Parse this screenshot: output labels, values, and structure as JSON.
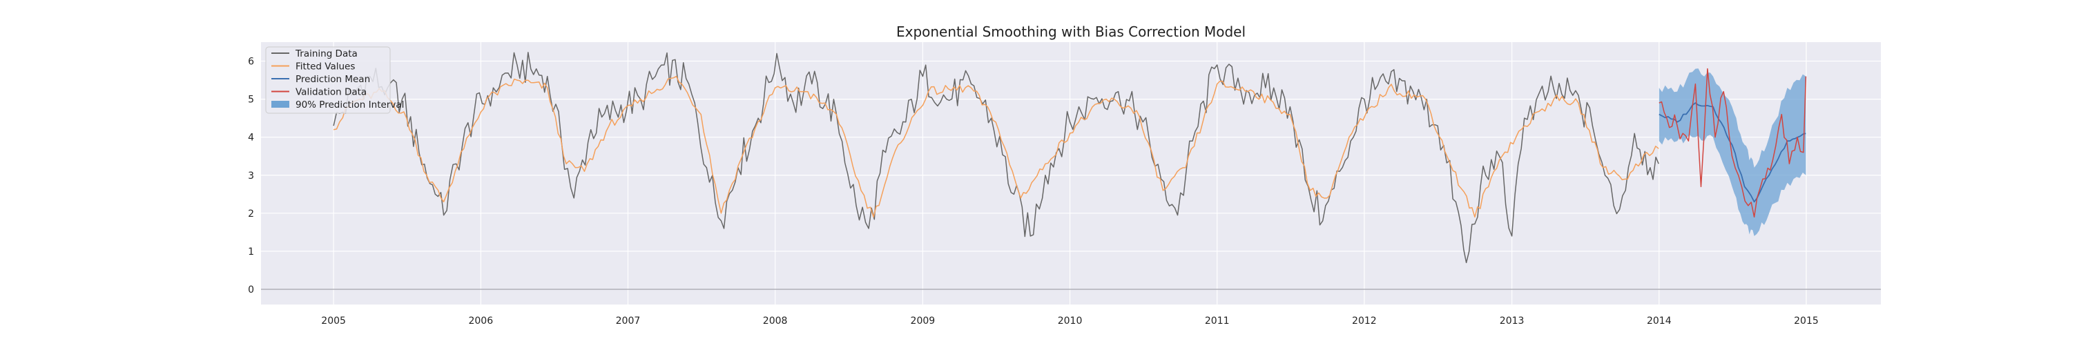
{
  "chart_data": {
    "type": "line",
    "title": "Exponential Smoothing with Bias Correction Model",
    "xlabel": "",
    "ylabel": "",
    "x_range": [
      "2004-07-05",
      "2015-07-05"
    ],
    "ylim": [
      -0.4,
      6.5
    ],
    "x_ticks": [
      "2005",
      "2006",
      "2007",
      "2008",
      "2009",
      "2010",
      "2011",
      "2012",
      "2013",
      "2014",
      "2015"
    ],
    "y_ticks": [
      "0",
      "1",
      "2",
      "3",
      "4",
      "5",
      "6"
    ],
    "grid": true,
    "legend_position": "top-left",
    "colors": {
      "training": "#666666",
      "fitted": "#f5a05a",
      "prediction_mean": "#3a6fb0",
      "validation": "#d2453f",
      "interval": "#6ea3d4",
      "plot_bg": "#eaeaf2",
      "grid": "#ffffff",
      "zero_line": "#b0b0b8"
    },
    "series": [
      {
        "name": "Training Data",
        "sampled_points": [
          [
            "2005-01-01",
            4.3
          ],
          [
            "2005-02-15",
            5.1
          ],
          [
            "2005-04-01",
            5.6
          ],
          [
            "2005-05-15",
            5.3
          ],
          [
            "2005-06-20",
            5.0
          ],
          [
            "2005-08-01",
            3.6
          ],
          [
            "2005-09-10",
            2.5
          ],
          [
            "2005-10-01",
            1.95
          ],
          [
            "2005-11-01",
            3.3
          ],
          [
            "2005-12-15",
            4.6
          ],
          [
            "2006-02-01",
            5.3
          ],
          [
            "2006-04-01",
            5.9
          ],
          [
            "2006-06-15",
            5.6
          ],
          [
            "2006-07-20",
            3.9
          ],
          [
            "2006-08-20",
            2.4
          ],
          [
            "2006-10-01",
            4.2
          ],
          [
            "2006-12-01",
            4.7
          ],
          [
            "2007-02-01",
            5.0
          ],
          [
            "2007-04-01",
            5.9
          ],
          [
            "2007-06-01",
            5.4
          ],
          [
            "2007-07-15",
            3.2
          ],
          [
            "2007-08-20",
            1.8
          ],
          [
            "2007-10-01",
            3.2
          ],
          [
            "2007-11-20",
            4.5
          ],
          [
            "2008-01-05",
            6.2
          ],
          [
            "2008-02-15",
            4.9
          ],
          [
            "2008-04-01",
            5.4
          ],
          [
            "2008-06-01",
            4.6
          ],
          [
            "2008-07-20",
            2.2
          ],
          [
            "2008-08-20",
            1.6
          ],
          [
            "2008-10-01",
            3.6
          ],
          [
            "2008-11-20",
            4.4
          ],
          [
            "2009-01-01",
            5.6
          ],
          [
            "2009-03-01",
            5.0
          ],
          [
            "2009-05-01",
            5.4
          ],
          [
            "2009-06-20",
            4.5
          ],
          [
            "2009-08-15",
            2.5
          ],
          [
            "2009-09-25",
            1.4
          ],
          [
            "2009-11-01",
            3.0
          ],
          [
            "2010-01-01",
            4.4
          ],
          [
            "2010-03-01",
            5.0
          ],
          [
            "2010-05-01",
            5.2
          ],
          [
            "2010-07-01",
            4.4
          ],
          [
            "2010-08-15",
            2.9
          ],
          [
            "2010-09-25",
            1.95
          ],
          [
            "2010-11-01",
            3.9
          ],
          [
            "2011-01-01",
            5.9
          ],
          [
            "2011-03-01",
            5.2
          ],
          [
            "2011-05-01",
            5.3
          ],
          [
            "2011-07-01",
            4.8
          ],
          [
            "2011-08-15",
            2.7
          ],
          [
            "2011-09-20",
            1.8
          ],
          [
            "2011-11-01",
            3.1
          ],
          [
            "2012-01-01",
            5.0
          ],
          [
            "2012-03-01",
            5.4
          ],
          [
            "2012-05-01",
            5.2
          ],
          [
            "2012-07-01",
            4.3
          ],
          [
            "2012-08-15",
            2.3
          ],
          [
            "2012-09-10",
            0.7
          ],
          [
            "2012-10-15",
            2.7
          ],
          [
            "2012-12-01",
            3.5
          ],
          [
            "2013-01-01",
            1.4
          ],
          [
            "2013-02-01",
            4.5
          ],
          [
            "2013-04-01",
            5.2
          ],
          [
            "2013-06-01",
            5.1
          ],
          [
            "2013-07-20",
            4.3
          ],
          [
            "2013-08-20",
            3.0
          ],
          [
            "2013-09-25",
            2.1
          ],
          [
            "2013-11-01",
            4.1
          ],
          [
            "2013-12-10",
            3.2
          ],
          [
            "2013-12-31",
            3.3
          ]
        ]
      },
      {
        "name": "Fitted Values",
        "sampled_points": [
          [
            "2005-01-01",
            4.2
          ],
          [
            "2005-02-15",
            4.9
          ],
          [
            "2005-05-01",
            5.2
          ],
          [
            "2005-07-01",
            4.5
          ],
          [
            "2005-08-20",
            3.0
          ],
          [
            "2005-10-01",
            2.3
          ],
          [
            "2005-11-20",
            3.7
          ],
          [
            "2006-01-15",
            5.0
          ],
          [
            "2006-04-01",
            5.5
          ],
          [
            "2006-06-15",
            5.3
          ],
          [
            "2006-08-01",
            3.3
          ],
          [
            "2006-09-15",
            3.1
          ],
          [
            "2006-11-15",
            4.3
          ],
          [
            "2007-02-01",
            5.0
          ],
          [
            "2007-05-01",
            5.6
          ],
          [
            "2007-07-01",
            4.6
          ],
          [
            "2007-08-20",
            2.0
          ],
          [
            "2007-10-15",
            3.6
          ],
          [
            "2008-01-01",
            5.3
          ],
          [
            "2008-03-15",
            5.2
          ],
          [
            "2008-06-01",
            4.6
          ],
          [
            "2008-08-01",
            2.6
          ],
          [
            "2008-09-01",
            1.9
          ],
          [
            "2008-11-01",
            3.8
          ],
          [
            "2009-01-15",
            5.2
          ],
          [
            "2009-05-01",
            5.3
          ],
          [
            "2009-07-01",
            4.4
          ],
          [
            "2009-09-01",
            2.4
          ],
          [
            "2009-11-01",
            3.3
          ],
          [
            "2010-01-15",
            4.3
          ],
          [
            "2010-04-01",
            5.0
          ],
          [
            "2010-06-15",
            4.7
          ],
          [
            "2010-08-20",
            2.6
          ],
          [
            "2010-10-15",
            3.2
          ],
          [
            "2011-01-01",
            5.4
          ],
          [
            "2011-04-01",
            5.2
          ],
          [
            "2011-07-01",
            4.6
          ],
          [
            "2011-08-20",
            2.6
          ],
          [
            "2011-10-01",
            2.4
          ],
          [
            "2011-12-01",
            4.1
          ],
          [
            "2012-03-01",
            5.3
          ],
          [
            "2012-06-01",
            5.0
          ],
          [
            "2012-08-01",
            3.3
          ],
          [
            "2012-10-01",
            1.9
          ],
          [
            "2012-12-01",
            3.4
          ],
          [
            "2013-02-01",
            4.3
          ],
          [
            "2013-04-15",
            5.0
          ],
          [
            "2013-06-15",
            4.9
          ],
          [
            "2013-08-15",
            3.2
          ],
          [
            "2013-10-15",
            2.9
          ],
          [
            "2013-12-01",
            3.6
          ],
          [
            "2013-12-31",
            3.7
          ]
        ]
      },
      {
        "name": "Prediction Mean",
        "sampled_points": [
          [
            "2014-01-01",
            4.6
          ],
          [
            "2014-02-15",
            4.4
          ],
          [
            "2014-04-01",
            4.9
          ],
          [
            "2014-05-15",
            4.8
          ],
          [
            "2014-07-01",
            3.8
          ],
          [
            "2014-08-01",
            2.7
          ],
          [
            "2014-08-25",
            2.3
          ],
          [
            "2014-10-01",
            3.0
          ],
          [
            "2014-11-15",
            3.9
          ],
          [
            "2014-12-31",
            4.1
          ]
        ]
      },
      {
        "name": "Validation Data",
        "sampled_points": [
          [
            "2014-01-01",
            4.9
          ],
          [
            "2014-01-20",
            4.5
          ],
          [
            "2014-02-15",
            4.3
          ],
          [
            "2014-03-15",
            3.9
          ],
          [
            "2014-04-01",
            5.4
          ],
          [
            "2014-04-15",
            2.7
          ],
          [
            "2014-05-01",
            5.8
          ],
          [
            "2014-05-20",
            4.0
          ],
          [
            "2014-06-10",
            5.2
          ],
          [
            "2014-07-01",
            3.5
          ],
          [
            "2014-07-25",
            2.7
          ],
          [
            "2014-08-10",
            2.2
          ],
          [
            "2014-08-25",
            1.9
          ],
          [
            "2014-09-15",
            2.9
          ],
          [
            "2014-10-10",
            3.4
          ],
          [
            "2014-11-01",
            4.6
          ],
          [
            "2014-11-20",
            3.3
          ],
          [
            "2014-12-10",
            4.0
          ],
          [
            "2014-12-25",
            3.6
          ],
          [
            "2014-12-31",
            5.6
          ]
        ]
      },
      {
        "name": "90% Prediction Interval",
        "sampled_bounds": [
          [
            "2014-01-01",
            3.9,
            5.3
          ],
          [
            "2014-02-15",
            3.9,
            5.2
          ],
          [
            "2014-04-01",
            4.0,
            5.8
          ],
          [
            "2014-05-15",
            4.0,
            5.6
          ],
          [
            "2014-07-01",
            2.7,
            4.8
          ],
          [
            "2014-08-01",
            1.7,
            3.8
          ],
          [
            "2014-08-25",
            1.4,
            3.2
          ],
          [
            "2014-10-01",
            2.0,
            4.0
          ],
          [
            "2014-11-15",
            2.8,
            5.3
          ],
          [
            "2014-12-31",
            3.0,
            5.6
          ]
        ]
      }
    ]
  }
}
